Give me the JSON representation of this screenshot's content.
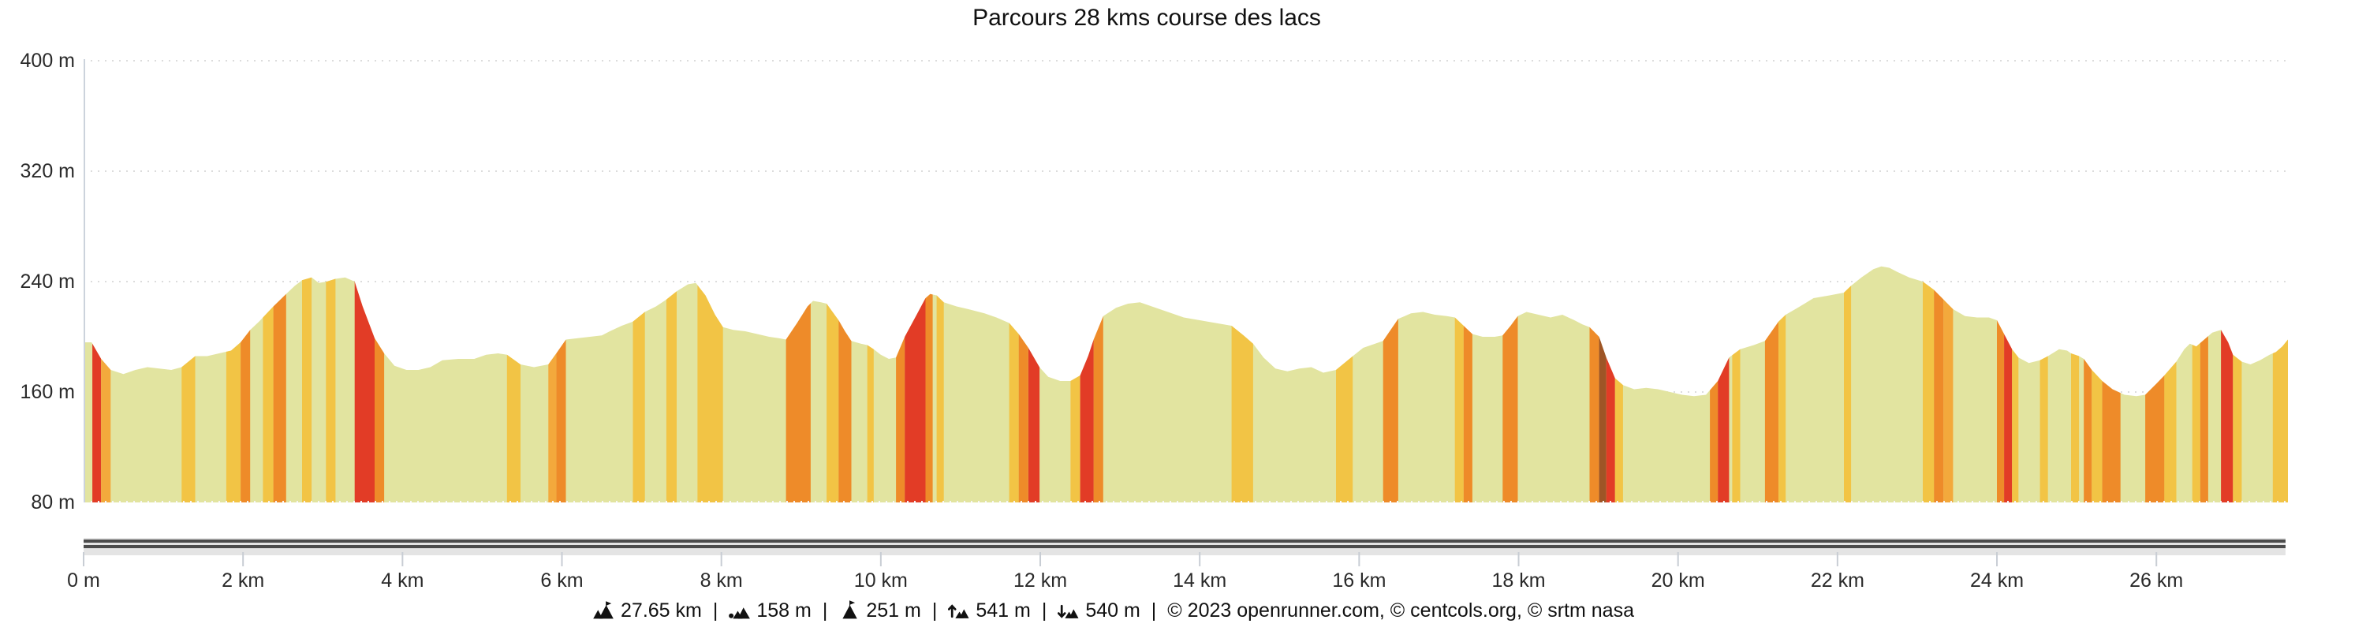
{
  "title": "Parcours 28 kms course des lacs",
  "footer": {
    "separator": "|",
    "stats": [
      {
        "icon": "mountain-distance-icon",
        "value": "27.65 km"
      },
      {
        "icon": "mountain-min-elevation-icon",
        "value": "158 m"
      },
      {
        "icon": "mountain-max-elevation-icon",
        "value": "251 m"
      },
      {
        "icon": "mountain-ascent-icon",
        "value": "541 m"
      },
      {
        "icon": "mountain-descent-icon",
        "value": "540 m"
      }
    ],
    "attribution": "© 2023 openrunner.com, © centcols.org, © srtm nasa"
  },
  "colors": {
    "area_fill": "#e2e4a0",
    "yellow": "#f2c445",
    "orange_light": "#f3a93c",
    "orange": "#ee8b29",
    "red": "#e23c26",
    "brown": "#9e5526",
    "gridline": "#dcdcdc",
    "baseline_dots": "#f6f6f6",
    "axis_line": "#ccd3dc",
    "tick_line": "#c8cdd4",
    "text": "#2a2a2a",
    "scrollbar_track": "#e4e4e4",
    "scrollbar_lines": "#4c4c4c"
  },
  "chart_data": {
    "type": "area",
    "title": "Parcours 28 kms course des lacs",
    "x_unit": "km",
    "y_unit": "m",
    "xlim_km": [
      0,
      27.65
    ],
    "ylim_m": [
      80,
      400
    ],
    "grid": "dotted-horizontal",
    "y_ticks": [
      {
        "m": 80,
        "label": "80 m"
      },
      {
        "m": 160,
        "label": "160 m"
      },
      {
        "m": 240,
        "label": "240 m"
      },
      {
        "m": 320,
        "label": "320 m"
      },
      {
        "m": 400,
        "label": "400 m"
      }
    ],
    "x_ticks": [
      {
        "km": 0,
        "label": "0 m"
      },
      {
        "km": 2,
        "label": "2 km"
      },
      {
        "km": 4,
        "label": "4 km"
      },
      {
        "km": 6,
        "label": "6 km"
      },
      {
        "km": 8,
        "label": "8 km"
      },
      {
        "km": 10,
        "label": "10 km"
      },
      {
        "km": 12,
        "label": "12 km"
      },
      {
        "km": 14,
        "label": "14 km"
      },
      {
        "km": 16,
        "label": "16 km"
      },
      {
        "km": 18,
        "label": "18 km"
      },
      {
        "km": 20,
        "label": "20 km"
      },
      {
        "km": 22,
        "label": "22 km"
      },
      {
        "km": 24,
        "label": "24 km"
      },
      {
        "km": 26,
        "label": "26 km"
      }
    ],
    "stats": {
      "total_distance_km": 27.65,
      "min_elevation_m": 158,
      "max_elevation_m": 251,
      "total_ascent_m": 541,
      "total_descent_m": 540
    },
    "profile_points_km_m": [
      [
        0,
        196
      ],
      [
        0.1,
        196
      ],
      [
        0.22,
        184
      ],
      [
        0.34,
        176
      ],
      [
        0.5,
        173
      ],
      [
        0.65,
        176
      ],
      [
        0.8,
        178
      ],
      [
        0.95,
        177
      ],
      [
        1.1,
        176
      ],
      [
        1.23,
        178
      ],
      [
        1.4,
        186
      ],
      [
        1.55,
        186
      ],
      [
        1.7,
        188
      ],
      [
        1.85,
        190
      ],
      [
        1.97,
        196
      ],
      [
        2.09,
        205
      ],
      [
        2.2,
        211
      ],
      [
        2.38,
        222
      ],
      [
        2.54,
        231
      ],
      [
        2.65,
        237
      ],
      [
        2.74,
        241
      ],
      [
        2.86,
        243
      ],
      [
        2.95,
        239
      ],
      [
        3.05,
        240
      ],
      [
        3.16,
        242
      ],
      [
        3.28,
        243
      ],
      [
        3.4,
        240
      ],
      [
        3.5,
        222
      ],
      [
        3.65,
        199
      ],
      [
        3.77,
        188
      ],
      [
        3.9,
        179
      ],
      [
        4.05,
        176
      ],
      [
        4.2,
        176
      ],
      [
        4.35,
        178
      ],
      [
        4.5,
        183
      ],
      [
        4.7,
        184
      ],
      [
        4.9,
        184
      ],
      [
        5.05,
        187
      ],
      [
        5.2,
        188
      ],
      [
        5.31,
        187
      ],
      [
        5.48,
        180
      ],
      [
        5.65,
        178
      ],
      [
        5.83,
        180
      ],
      [
        5.93,
        188
      ],
      [
        6.05,
        198
      ],
      [
        6.2,
        199
      ],
      [
        6.35,
        200
      ],
      [
        6.5,
        201
      ],
      [
        6.6,
        204
      ],
      [
        6.75,
        208
      ],
      [
        6.89,
        211
      ],
      [
        7.04,
        218
      ],
      [
        7.18,
        222
      ],
      [
        7.31,
        227
      ],
      [
        7.44,
        233
      ],
      [
        7.58,
        238
      ],
      [
        7.68,
        239
      ],
      [
        7.8,
        230
      ],
      [
        7.92,
        216
      ],
      [
        8.02,
        207
      ],
      [
        8.15,
        205
      ],
      [
        8.3,
        204
      ],
      [
        8.45,
        202
      ],
      [
        8.6,
        200
      ],
      [
        8.72,
        199
      ],
      [
        8.81,
        198
      ],
      [
        8.95,
        210
      ],
      [
        9.08,
        222
      ],
      [
        9.15,
        226
      ],
      [
        9.25,
        225
      ],
      [
        9.32,
        224
      ],
      [
        9.47,
        212
      ],
      [
        9.55,
        204
      ],
      [
        9.63,
        197
      ],
      [
        9.75,
        195
      ],
      [
        9.83,
        194
      ],
      [
        9.91,
        191
      ],
      [
        10.0,
        187
      ],
      [
        10.1,
        184
      ],
      [
        10.19,
        185
      ],
      [
        10.3,
        200
      ],
      [
        10.45,
        216
      ],
      [
        10.56,
        228
      ],
      [
        10.62,
        231
      ],
      [
        10.7,
        230
      ],
      [
        10.79,
        225
      ],
      [
        10.95,
        222
      ],
      [
        11.1,
        220
      ],
      [
        11.3,
        217
      ],
      [
        11.45,
        214
      ],
      [
        11.61,
        210
      ],
      [
        11.73,
        202
      ],
      [
        11.85,
        192
      ],
      [
        11.99,
        178
      ],
      [
        12.1,
        171
      ],
      [
        12.25,
        168
      ],
      [
        12.38,
        168
      ],
      [
        12.5,
        172
      ],
      [
        12.6,
        186
      ],
      [
        12.67,
        198
      ],
      [
        12.79,
        215
      ],
      [
        12.95,
        221
      ],
      [
        13.1,
        224
      ],
      [
        13.25,
        225
      ],
      [
        13.4,
        222
      ],
      [
        13.6,
        218
      ],
      [
        13.8,
        214
      ],
      [
        14.0,
        212
      ],
      [
        14.2,
        210
      ],
      [
        14.4,
        208
      ],
      [
        14.55,
        201
      ],
      [
        14.67,
        195
      ],
      [
        14.8,
        185
      ],
      [
        14.95,
        177
      ],
      [
        15.1,
        175
      ],
      [
        15.25,
        177
      ],
      [
        15.4,
        178
      ],
      [
        15.55,
        174
      ],
      [
        15.71,
        176
      ],
      [
        15.92,
        186
      ],
      [
        16.05,
        192
      ],
      [
        16.2,
        195
      ],
      [
        16.3,
        197
      ],
      [
        16.49,
        213
      ],
      [
        16.65,
        217
      ],
      [
        16.8,
        218
      ],
      [
        16.95,
        216
      ],
      [
        17.1,
        215
      ],
      [
        17.2,
        214
      ],
      [
        17.31,
        208
      ],
      [
        17.42,
        202
      ],
      [
        17.55,
        200
      ],
      [
        17.7,
        200
      ],
      [
        17.8,
        201
      ],
      [
        17.9,
        208
      ],
      [
        17.99,
        215
      ],
      [
        18.1,
        218
      ],
      [
        18.25,
        216
      ],
      [
        18.4,
        214
      ],
      [
        18.55,
        216
      ],
      [
        18.7,
        212
      ],
      [
        18.8,
        209
      ],
      [
        18.89,
        207
      ],
      [
        19.01,
        200
      ],
      [
        19.1,
        185
      ],
      [
        19.21,
        170
      ],
      [
        19.31,
        165
      ],
      [
        19.45,
        162
      ],
      [
        19.6,
        163
      ],
      [
        19.75,
        162
      ],
      [
        19.9,
        160
      ],
      [
        20.05,
        158
      ],
      [
        20.2,
        157
      ],
      [
        20.35,
        158
      ],
      [
        20.5,
        168
      ],
      [
        20.64,
        185
      ],
      [
        20.78,
        191
      ],
      [
        20.95,
        194
      ],
      [
        21.09,
        197
      ],
      [
        21.26,
        211
      ],
      [
        21.35,
        216
      ],
      [
        21.5,
        221
      ],
      [
        21.7,
        228
      ],
      [
        21.9,
        230
      ],
      [
        22.08,
        232
      ],
      [
        22.17,
        237
      ],
      [
        22.3,
        243
      ],
      [
        22.45,
        249
      ],
      [
        22.55,
        251
      ],
      [
        22.65,
        250
      ],
      [
        22.75,
        247
      ],
      [
        22.9,
        243
      ],
      [
        23.07,
        240
      ],
      [
        23.21,
        234
      ],
      [
        23.33,
        227
      ],
      [
        23.45,
        220
      ],
      [
        23.6,
        215
      ],
      [
        23.75,
        214
      ],
      [
        23.9,
        214
      ],
      [
        24.0,
        212
      ],
      [
        24.09,
        202
      ],
      [
        24.19,
        191
      ],
      [
        24.27,
        185
      ],
      [
        24.4,
        181
      ],
      [
        24.54,
        183
      ],
      [
        24.64,
        186
      ],
      [
        24.78,
        191
      ],
      [
        24.88,
        190
      ],
      [
        24.93,
        188
      ],
      [
        25.03,
        186
      ],
      [
        25.09,
        184
      ],
      [
        25.19,
        176
      ],
      [
        25.32,
        168
      ],
      [
        25.45,
        162
      ],
      [
        25.6,
        158
      ],
      [
        25.75,
        157
      ],
      [
        25.86,
        158
      ],
      [
        26.0,
        166
      ],
      [
        26.1,
        172
      ],
      [
        26.25,
        182
      ],
      [
        26.35,
        191
      ],
      [
        26.42,
        195
      ],
      [
        26.5,
        193
      ],
      [
        26.6,
        198
      ],
      [
        26.7,
        203
      ],
      [
        26.81,
        205
      ],
      [
        26.9,
        196
      ],
      [
        26.96,
        187
      ],
      [
        27.07,
        182
      ],
      [
        27.18,
        180
      ],
      [
        27.3,
        183
      ],
      [
        27.42,
        187
      ],
      [
        27.5,
        189
      ],
      [
        27.58,
        193
      ],
      [
        27.65,
        198
      ]
    ],
    "gradient_stripes_km": [
      [
        0.11,
        0.22,
        "red"
      ],
      [
        0.22,
        0.34,
        "orange_light"
      ],
      [
        1.23,
        1.4,
        "yellow"
      ],
      [
        1.79,
        1.97,
        "yellow"
      ],
      [
        1.97,
        2.09,
        "orange"
      ],
      [
        2.25,
        2.38,
        "yellow"
      ],
      [
        2.38,
        2.54,
        "orange"
      ],
      [
        2.74,
        2.86,
        "yellow"
      ],
      [
        3.04,
        3.16,
        "yellow"
      ],
      [
        3.4,
        3.65,
        "red"
      ],
      [
        3.65,
        3.77,
        "orange"
      ],
      [
        5.31,
        5.48,
        "yellow"
      ],
      [
        5.83,
        5.93,
        "orange_light"
      ],
      [
        5.93,
        6.05,
        "orange"
      ],
      [
        6.89,
        7.04,
        "yellow"
      ],
      [
        7.31,
        7.44,
        "yellow"
      ],
      [
        7.7,
        8.02,
        "yellow"
      ],
      [
        8.81,
        9.12,
        "orange"
      ],
      [
        9.32,
        9.47,
        "yellow"
      ],
      [
        9.47,
        9.63,
        "orange"
      ],
      [
        9.83,
        9.91,
        "yellow"
      ],
      [
        10.19,
        10.3,
        "orange"
      ],
      [
        10.3,
        10.56,
        "red"
      ],
      [
        10.56,
        10.65,
        "orange"
      ],
      [
        10.7,
        10.79,
        "yellow"
      ],
      [
        11.61,
        11.73,
        "yellow"
      ],
      [
        11.73,
        11.85,
        "orange"
      ],
      [
        11.85,
        11.99,
        "red"
      ],
      [
        12.38,
        12.5,
        "yellow"
      ],
      [
        12.5,
        12.67,
        "red"
      ],
      [
        12.67,
        12.79,
        "orange"
      ],
      [
        14.4,
        14.67,
        "yellow"
      ],
      [
        15.71,
        15.92,
        "yellow"
      ],
      [
        16.3,
        16.49,
        "orange"
      ],
      [
        17.2,
        17.31,
        "yellow"
      ],
      [
        17.31,
        17.42,
        "orange"
      ],
      [
        17.8,
        17.99,
        "orange"
      ],
      [
        18.89,
        19.01,
        "orange"
      ],
      [
        19.01,
        19.1,
        "brown"
      ],
      [
        19.1,
        19.21,
        "red"
      ],
      [
        19.21,
        19.31,
        "yellow"
      ],
      [
        20.4,
        20.5,
        "orange"
      ],
      [
        20.5,
        20.64,
        "red"
      ],
      [
        20.68,
        20.78,
        "yellow"
      ],
      [
        21.09,
        21.26,
        "orange"
      ],
      [
        21.26,
        21.35,
        "yellow"
      ],
      [
        22.08,
        22.17,
        "yellow"
      ],
      [
        23.07,
        23.21,
        "yellow"
      ],
      [
        23.21,
        23.33,
        "orange"
      ],
      [
        23.33,
        23.45,
        "orange_light"
      ],
      [
        24.0,
        24.09,
        "orange"
      ],
      [
        24.09,
        24.19,
        "red"
      ],
      [
        24.19,
        24.27,
        "yellow"
      ],
      [
        24.54,
        24.64,
        "yellow"
      ],
      [
        24.93,
        25.03,
        "yellow"
      ],
      [
        25.09,
        25.19,
        "orange"
      ],
      [
        25.19,
        25.32,
        "yellow"
      ],
      [
        25.32,
        25.55,
        "orange"
      ],
      [
        25.86,
        26.1,
        "orange"
      ],
      [
        26.1,
        26.25,
        "yellow"
      ],
      [
        26.45,
        26.55,
        "yellow"
      ],
      [
        26.55,
        26.65,
        "orange"
      ],
      [
        26.81,
        26.96,
        "red"
      ],
      [
        26.96,
        27.07,
        "yellow"
      ],
      [
        27.46,
        27.65,
        "yellow"
      ]
    ]
  }
}
